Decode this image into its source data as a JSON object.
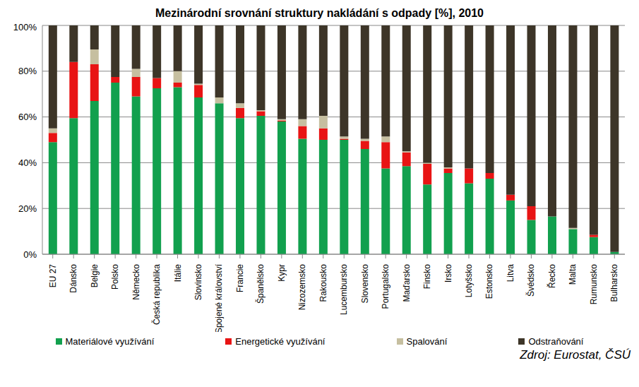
{
  "chart_data": {
    "type": "bar",
    "title": "Mezinárodní srovnání struktury nakládání s odpady [%], 2010",
    "source": "Zdroj: Eurostat, ČSÚ",
    "stacked": true,
    "grid": true,
    "legend": "bottom",
    "categories": [
      "EU 27",
      "Dánsko",
      "Belgie",
      "Polsko",
      "Německo",
      "Česká republika",
      "Itálie",
      "Slovinsko",
      "Spojené království",
      "Francie",
      "Španělsko",
      "Kypr",
      "Nizozemsko",
      "Rakousko",
      "Lucembursko",
      "Slovensko",
      "Portugalsko",
      "Maďarsko",
      "Finsko",
      "Irsko",
      "Lotyšsko",
      "Estonsko",
      "Litva",
      "Švédsko",
      "Řecko",
      "Malta",
      "Rumunsko",
      "Bulharsko"
    ],
    "ylim": [
      0,
      100
    ],
    "yticks": [
      {
        "value": 0,
        "label": "0%"
      },
      {
        "value": 20,
        "label": "20%"
      },
      {
        "value": 40,
        "label": "40%"
      },
      {
        "value": 60,
        "label": "60%"
      },
      {
        "value": 80,
        "label": "80%"
      },
      {
        "value": 100,
        "label": "100%"
      }
    ],
    "series": [
      {
        "name": "Materiálové využívání",
        "color": "#12a04e",
        "values": [
          49,
          59.5,
          67,
          75,
          69,
          72.5,
          73,
          68.5,
          66,
          59.5,
          60.5,
          58,
          50.5,
          50,
          50,
          46,
          37.5,
          38.5,
          30.5,
          35.5,
          31,
          33,
          23.5,
          15,
          16.5,
          11,
          7.5,
          1
        ]
      },
      {
        "name": "Energetické využívání",
        "color": "#e81414",
        "values": [
          4,
          24.5,
          16,
          2.5,
          8.5,
          4.5,
          2,
          5.5,
          0,
          4.5,
          2,
          0.5,
          5.5,
          5,
          0.5,
          3.5,
          11.5,
          6,
          9,
          2,
          6.5,
          2.5,
          2.5,
          6,
          0,
          0,
          1,
          0
        ]
      },
      {
        "name": "Spalování",
        "color": "#c6bfa0",
        "values": [
          2,
          0,
          6.5,
          0,
          3.5,
          0,
          5,
          0.5,
          2.5,
          2,
          0.5,
          0.5,
          3,
          5.5,
          1,
          1,
          2.5,
          0.5,
          0.5,
          0.5,
          0,
          0,
          0,
          0,
          0,
          0.5,
          0,
          0
        ]
      },
      {
        "name": "Odstraňování",
        "color": "#3d3528",
        "values": [
          45,
          16,
          10.5,
          22.5,
          19,
          23,
          20,
          25.5,
          31.5,
          34,
          37,
          41,
          41,
          39.5,
          48.5,
          49.5,
          48.5,
          55,
          60,
          62,
          62.5,
          64.5,
          74,
          79,
          83.5,
          88.5,
          91.5,
          99
        ]
      }
    ]
  }
}
